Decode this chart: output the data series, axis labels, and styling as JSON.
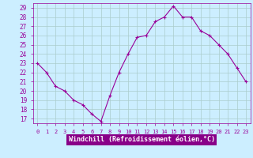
{
  "x": [
    0,
    1,
    2,
    3,
    4,
    5,
    6,
    7,
    8,
    9,
    10,
    11,
    12,
    13,
    14,
    15,
    16,
    17,
    18,
    19,
    20,
    21,
    22,
    23
  ],
  "y": [
    23,
    22,
    20.5,
    20,
    19,
    18.5,
    17.5,
    16.7,
    19.5,
    22,
    24,
    25.8,
    26.0,
    27.5,
    28.0,
    29.2,
    28.0,
    28.0,
    26.5,
    26.0,
    25.0,
    24.0,
    22.5,
    21.0
  ],
  "yticks": [
    17,
    18,
    19,
    20,
    21,
    22,
    23,
    24,
    25,
    26,
    27,
    28,
    29
  ],
  "xticks": [
    0,
    1,
    2,
    3,
    4,
    5,
    6,
    7,
    8,
    9,
    10,
    11,
    12,
    13,
    14,
    15,
    16,
    17,
    18,
    19,
    20,
    21,
    22,
    23
  ],
  "xlabel": "Windchill (Refroidissement éolien,°C)",
  "line_color": "#990099",
  "marker": "+",
  "bg_color": "#cceeff",
  "grid_color": "#aacccc",
  "xlabel_color": "#ffffff",
  "xlabel_bg": "#880088",
  "tick_label_color": "#990099",
  "axis_color": "#990099",
  "xlim": [
    -0.5,
    23.5
  ],
  "ylim": [
    16.5,
    29.5
  ]
}
